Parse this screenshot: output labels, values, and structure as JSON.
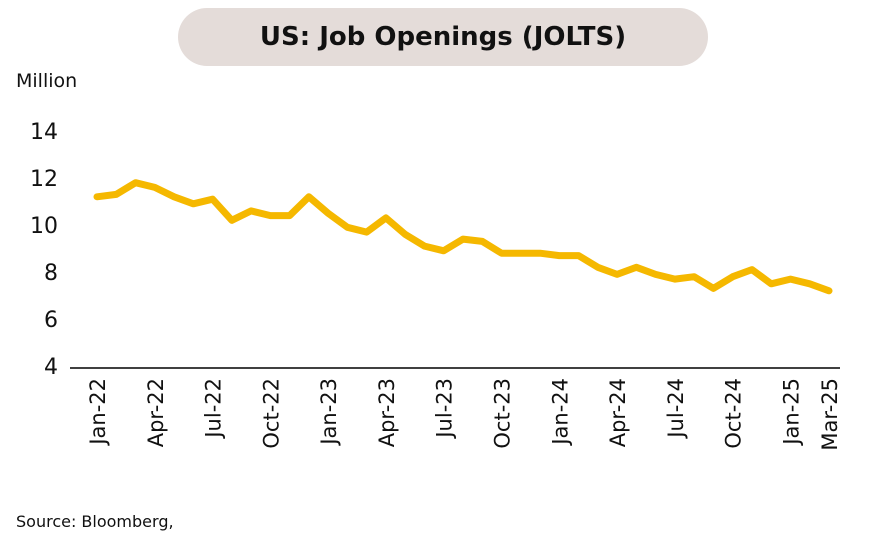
{
  "title": "US: Job Openings (JOLTS)",
  "unit_label": "Million",
  "source": "Source: Bloomberg,",
  "colors": {
    "line": "#f5b800",
    "title_bg": "#e4dcd9"
  },
  "chart_data": {
    "type": "line",
    "title": "US: Job Openings (JOLTS)",
    "ylabel": "Million",
    "ylim": [
      4,
      14
    ],
    "yticks": [
      4,
      6,
      8,
      10,
      12,
      14
    ],
    "grid": false,
    "xtick_labels": [
      "Jan-22",
      "Apr-22",
      "Jul-22",
      "Oct-22",
      "Jan-23",
      "Apr-23",
      "Jul-23",
      "Oct-23",
      "Jan-24",
      "Apr-24",
      "Jul-24",
      "Oct-24",
      "Jan-25",
      "Mar-25"
    ],
    "x": [
      "Jan-22",
      "Feb-22",
      "Mar-22",
      "Apr-22",
      "May-22",
      "Jun-22",
      "Jul-22",
      "Aug-22",
      "Sep-22",
      "Oct-22",
      "Nov-22",
      "Dec-22",
      "Jan-23",
      "Feb-23",
      "Mar-23",
      "Apr-23",
      "May-23",
      "Jun-23",
      "Jul-23",
      "Aug-23",
      "Sep-23",
      "Oct-23",
      "Nov-23",
      "Dec-23",
      "Jan-24",
      "Feb-24",
      "Mar-24",
      "Apr-24",
      "May-24",
      "Jun-24",
      "Jul-24",
      "Aug-24",
      "Sep-24",
      "Oct-24",
      "Nov-24",
      "Dec-24",
      "Jan-25",
      "Feb-25",
      "Mar-25"
    ],
    "series": [
      {
        "values": [
          11.2,
          11.3,
          11.8,
          11.6,
          11.2,
          10.9,
          11.1,
          10.2,
          10.6,
          10.4,
          10.4,
          11.2,
          10.5,
          9.9,
          9.7,
          10.3,
          9.6,
          9.1,
          8.9,
          9.4,
          9.3,
          8.8,
          8.8,
          8.8,
          8.7,
          8.7,
          8.2,
          7.9,
          8.2,
          7.9,
          7.7,
          7.8,
          7.3,
          7.8,
          8.1,
          7.5,
          7.7,
          7.5,
          7.2
        ]
      }
    ]
  }
}
